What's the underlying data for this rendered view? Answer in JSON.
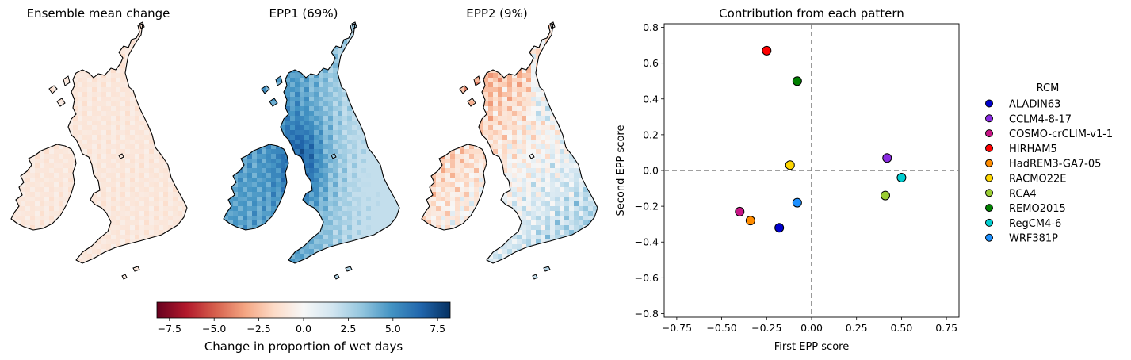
{
  "maps": {
    "panels": [
      {
        "title": "Ensemble mean change",
        "fill": "ensemble"
      },
      {
        "title": "EPP1 (69%)",
        "fill": "epp1"
      },
      {
        "title": "EPP2 (9%)",
        "fill": "epp2"
      }
    ]
  },
  "colorbar": {
    "label": "Change in proportion of wet days",
    "ticks": [
      "−7.5",
      "−5.0",
      "−2.5",
      "0.0",
      "2.5",
      "5.0",
      "7.5"
    ],
    "tick_values": [
      -7.5,
      -5.0,
      -2.5,
      0.0,
      2.5,
      5.0,
      7.5
    ],
    "range": [
      -8.2,
      8.2
    ],
    "colormap": "RdBu",
    "colors": [
      "#67001f",
      "#b2182b",
      "#d6604d",
      "#f4a582",
      "#fddbc7",
      "#f7f7f7",
      "#d1e5f0",
      "#92c5de",
      "#4393c3",
      "#2166ac",
      "#053061"
    ]
  },
  "chart_data": {
    "type": "scatter",
    "title": "Contribution from each pattern",
    "xlabel": "First EPP score",
    "ylabel": "Second EPP score",
    "xlim": [
      -0.82,
      0.82
    ],
    "ylim": [
      -0.82,
      0.82
    ],
    "xticks": [
      "−0.75",
      "−0.50",
      "−0.25",
      "0.00",
      "0.25",
      "0.50",
      "0.75"
    ],
    "xtick_values": [
      -0.75,
      -0.5,
      -0.25,
      0.0,
      0.25,
      0.5,
      0.75
    ],
    "yticks": [
      "−0.8",
      "−0.6",
      "−0.4",
      "−0.2",
      "0.0",
      "0.2",
      "0.4",
      "0.6",
      "0.8"
    ],
    "ytick_values": [
      -0.8,
      -0.6,
      -0.4,
      -0.2,
      0.0,
      0.2,
      0.4,
      0.6,
      0.8
    ],
    "reference_lines": {
      "x": 0,
      "y": 0,
      "style": "dashed",
      "color": "#808080"
    },
    "legend": {
      "title": "RCM",
      "placement": "outside-right"
    },
    "series": [
      {
        "name": "ALADIN63",
        "x": -0.18,
        "y": -0.32,
        "color": "#0000cd"
      },
      {
        "name": "CCLM4-8-17",
        "x": 0.42,
        "y": 0.07,
        "color": "#8a2be2"
      },
      {
        "name": "COSMO-crCLIM-v1-1",
        "x": -0.4,
        "y": -0.23,
        "color": "#c71585"
      },
      {
        "name": "HIRHAM5",
        "x": -0.25,
        "y": 0.67,
        "color": "#ff0000"
      },
      {
        "name": "HadREM3-GA7-05",
        "x": -0.34,
        "y": -0.28,
        "color": "#ff8c00"
      },
      {
        "name": "RACMO22E",
        "x": -0.12,
        "y": 0.03,
        "color": "#ffd700"
      },
      {
        "name": "RCA4",
        "x": 0.41,
        "y": -0.14,
        "color": "#9acd32"
      },
      {
        "name": "REMO2015",
        "x": -0.08,
        "y": 0.5,
        "color": "#008000"
      },
      {
        "name": "RegCM4-6",
        "x": 0.5,
        "y": -0.04,
        "color": "#00ced1"
      },
      {
        "name": "WRF381P",
        "x": -0.08,
        "y": -0.18,
        "color": "#1e90ff"
      }
    ]
  }
}
